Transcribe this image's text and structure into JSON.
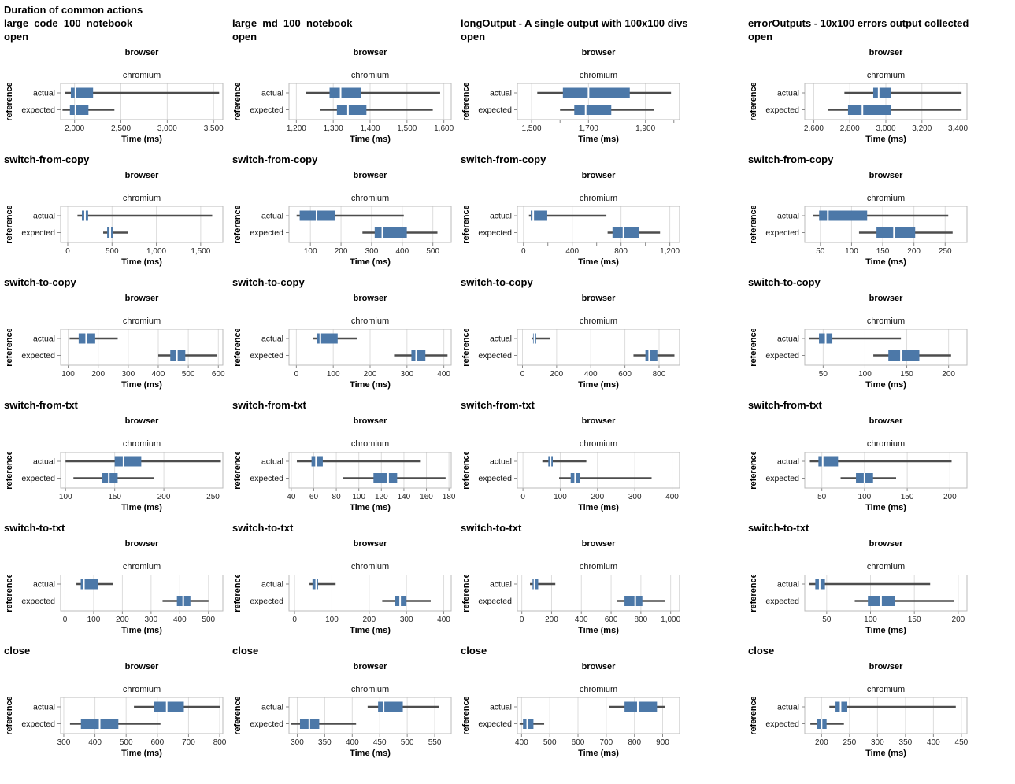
{
  "chart_data": {
    "type": "boxplot",
    "title": "Duration of common actions",
    "xlabel": "Time (ms)",
    "ylabel": "reference",
    "categories": [
      "actual",
      "expected"
    ],
    "browser_label": "browser",
    "engine_label": "chromium",
    "legend_position": "none",
    "grid": true,
    "colors": {
      "box": "#4c78a8",
      "median": "#ffffff",
      "whisker": "#4d4d4d",
      "gridline": "#dddddd",
      "frame": "#bbbbbb",
      "tick": "#888888"
    },
    "columns": [
      "large_code_100_notebook",
      "large_md_100_notebook",
      "longOutput - A single output with 100x100 divs",
      "errorOutputs - 10x100 errors output collected"
    ],
    "rows": [
      "open",
      "switch-from-copy",
      "switch-to-copy",
      "switch-from-txt",
      "switch-to-txt",
      "close"
    ],
    "cells": [
      {
        "action": "open",
        "notebook": "large_code_100_notebook",
        "axis": {
          "min": 1850,
          "max": 3600
        },
        "tick_values": [
          2000,
          2500,
          3000,
          3500
        ],
        "tick_labels": [
          "2,000",
          "2,500",
          "3,000",
          "3,500"
        ],
        "actual": {
          "lo": 1900,
          "q1": 1960,
          "med": 2010,
          "q3": 2200,
          "hi": 3560
        },
        "expected": {
          "lo": 1870,
          "q1": 1950,
          "med": 2010,
          "q3": 2150,
          "hi": 2430
        }
      },
      {
        "action": "open",
        "notebook": "large_md_100_notebook",
        "axis": {
          "min": 1180,
          "max": 1620
        },
        "tick_values": [
          1200,
          1300,
          1400,
          1500,
          1600
        ],
        "tick_labels": [
          "1,200",
          "1,300",
          "1,400",
          "1,500",
          "1,600"
        ],
        "actual": {
          "lo": 1225,
          "q1": 1290,
          "med": 1320,
          "q3": 1375,
          "hi": 1590
        },
        "expected": {
          "lo": 1265,
          "q1": 1310,
          "med": 1340,
          "q3": 1390,
          "hi": 1570
        }
      },
      {
        "action": "open",
        "notebook": "longOutput - A single output with 100x100 divs",
        "axis": {
          "min": 1450,
          "max": 2020
        },
        "tick_values": [
          1500,
          1600,
          1700,
          1800,
          1900,
          2000
        ],
        "tick_labels": [
          "1,500",
          "",
          "1,700",
          "",
          "1,900",
          ""
        ],
        "actual": {
          "lo": 1520,
          "q1": 1610,
          "med": 1700,
          "q3": 1845,
          "hi": 1990
        },
        "expected": {
          "lo": 1600,
          "q1": 1650,
          "med": 1690,
          "q3": 1780,
          "hi": 1930
        }
      },
      {
        "action": "open",
        "notebook": "errorOutputs - 10x100 errors output collected",
        "axis": {
          "min": 2550,
          "max": 3450
        },
        "tick_values": [
          2600,
          2800,
          3000,
          3200,
          3400
        ],
        "tick_labels": [
          "2,600",
          "2,800",
          "3,000",
          "3,200",
          "3,400"
        ],
        "actual": {
          "lo": 2770,
          "q1": 2930,
          "med": 2960,
          "q3": 3030,
          "hi": 3420
        },
        "expected": {
          "lo": 2680,
          "q1": 2790,
          "med": 2870,
          "q3": 3030,
          "hi": 3420
        }
      },
      {
        "action": "switch-from-copy",
        "notebook": "large_code_100_notebook",
        "axis": {
          "min": -80,
          "max": 1750
        },
        "tick_values": [
          0,
          500,
          1000,
          1500
        ],
        "tick_labels": [
          "0",
          "500",
          "1,000",
          "1,500"
        ],
        "actual": {
          "lo": 110,
          "q1": 160,
          "med": 195,
          "q3": 230,
          "hi": 1630
        },
        "expected": {
          "lo": 400,
          "q1": 445,
          "med": 480,
          "q3": 515,
          "hi": 680
        }
      },
      {
        "action": "switch-from-copy",
        "notebook": "large_md_100_notebook",
        "axis": {
          "min": 30,
          "max": 560
        },
        "tick_values": [
          100,
          200,
          300,
          400,
          500
        ],
        "tick_labels": [
          "100",
          "200",
          "300",
          "400",
          "500"
        ],
        "actual": {
          "lo": 55,
          "q1": 65,
          "med": 120,
          "q3": 180,
          "hi": 405
        },
        "expected": {
          "lo": 270,
          "q1": 310,
          "med": 335,
          "q3": 415,
          "hi": 515
        }
      },
      {
        "action": "switch-from-copy",
        "notebook": "longOutput - A single output with 100x100 divs",
        "axis": {
          "min": -50,
          "max": 1280
        },
        "tick_values": [
          0,
          200,
          400,
          600,
          800,
          1000,
          1200
        ],
        "tick_labels": [
          "0",
          "",
          "400",
          "",
          "800",
          "",
          "1,200"
        ],
        "actual": {
          "lo": 45,
          "q1": 60,
          "med": 80,
          "q3": 195,
          "hi": 680
        },
        "expected": {
          "lo": 690,
          "q1": 730,
          "med": 820,
          "q3": 950,
          "hi": 1120
        }
      },
      {
        "action": "switch-from-copy",
        "notebook": "errorOutputs - 10x100 errors output collected",
        "axis": {
          "min": 25,
          "max": 285
        },
        "tick_values": [
          50,
          100,
          150,
          200,
          250
        ],
        "tick_labels": [
          "50",
          "100",
          "150",
          "200",
          "250"
        ],
        "actual": {
          "lo": 38,
          "q1": 48,
          "med": 62,
          "q3": 125,
          "hi": 255
        },
        "expected": {
          "lo": 112,
          "q1": 140,
          "med": 168,
          "q3": 202,
          "hi": 262
        }
      },
      {
        "action": "switch-to-copy",
        "notebook": "large_code_100_notebook",
        "axis": {
          "min": 75,
          "max": 615
        },
        "tick_values": [
          100,
          200,
          300,
          400,
          500,
          600
        ],
        "tick_labels": [
          "100",
          "200",
          "300",
          "400",
          "500",
          "600"
        ],
        "actual": {
          "lo": 105,
          "q1": 135,
          "med": 160,
          "q3": 190,
          "hi": 265
        },
        "expected": {
          "lo": 400,
          "q1": 440,
          "med": 462,
          "q3": 490,
          "hi": 595
        }
      },
      {
        "action": "switch-to-copy",
        "notebook": "large_md_100_notebook",
        "axis": {
          "min": -20,
          "max": 420
        },
        "tick_values": [
          0,
          100,
          200,
          300,
          400
        ],
        "tick_labels": [
          "0",
          "100",
          "200",
          "300",
          "400"
        ],
        "actual": {
          "lo": 45,
          "q1": 55,
          "med": 65,
          "q3": 112,
          "hi": 165
        },
        "expected": {
          "lo": 265,
          "q1": 312,
          "med": 325,
          "q3": 350,
          "hi": 410
        }
      },
      {
        "action": "switch-to-copy",
        "notebook": "longOutput - A single output with 100x100 divs",
        "axis": {
          "min": -30,
          "max": 920
        },
        "tick_values": [
          0,
          200,
          400,
          600,
          800
        ],
        "tick_labels": [
          "0",
          "200",
          "400",
          "600",
          "800"
        ],
        "actual": {
          "lo": 55,
          "q1": 62,
          "med": 70,
          "q3": 80,
          "hi": 160
        },
        "expected": {
          "lo": 650,
          "q1": 720,
          "med": 742,
          "q3": 790,
          "hi": 890
        }
      },
      {
        "action": "switch-to-copy",
        "notebook": "errorOutputs - 10x100 errors output collected",
        "axis": {
          "min": 28,
          "max": 222
        },
        "tick_values": [
          50,
          100,
          150,
          200
        ],
        "tick_labels": [
          "50",
          "100",
          "150",
          "200"
        ],
        "actual": {
          "lo": 33,
          "q1": 45,
          "med": 53,
          "q3": 61,
          "hi": 143
        },
        "expected": {
          "lo": 110,
          "q1": 128,
          "med": 143,
          "q3": 165,
          "hi": 203
        }
      },
      {
        "action": "switch-from-txt",
        "notebook": "large_code_100_notebook",
        "axis": {
          "min": 95,
          "max": 260
        },
        "tick_values": [
          100,
          150,
          200,
          250
        ],
        "tick_labels": [
          "100",
          "150",
          "200",
          "250"
        ],
        "actual": {
          "lo": 100,
          "q1": 150,
          "med": 159,
          "q3": 177,
          "hi": 258
        },
        "expected": {
          "lo": 108,
          "q1": 137,
          "med": 144,
          "q3": 153,
          "hi": 190
        }
      },
      {
        "action": "switch-from-txt",
        "notebook": "large_md_100_notebook",
        "axis": {
          "min": 38,
          "max": 182
        },
        "tick_values": [
          40,
          60,
          80,
          100,
          120,
          140,
          160,
          180
        ],
        "tick_labels": [
          "40",
          "60",
          "80",
          "100",
          "120",
          "140",
          "160",
          "180"
        ],
        "actual": {
          "lo": 45,
          "q1": 58,
          "med": 62,
          "q3": 68,
          "hi": 155
        },
        "expected": {
          "lo": 86,
          "q1": 113,
          "med": 126,
          "q3": 134,
          "hi": 177
        }
      },
      {
        "action": "switch-from-txt",
        "notebook": "longOutput - A single output with 100x100 divs",
        "axis": {
          "min": -15,
          "max": 420
        },
        "tick_values": [
          0,
          100,
          200,
          300,
          400
        ],
        "tick_labels": [
          "0",
          "100",
          "200",
          "300",
          "400"
        ],
        "actual": {
          "lo": 52,
          "q1": 68,
          "med": 74,
          "q3": 80,
          "hi": 170
        },
        "expected": {
          "lo": 97,
          "q1": 128,
          "med": 140,
          "q3": 152,
          "hi": 345
        }
      },
      {
        "action": "switch-from-txt",
        "notebook": "errorOutputs - 10x100 errors output collected",
        "axis": {
          "min": 30,
          "max": 220
        },
        "tick_values": [
          50,
          100,
          150,
          200
        ],
        "tick_labels": [
          "50",
          "100",
          "150",
          "200"
        ],
        "actual": {
          "lo": 36,
          "q1": 46,
          "med": 51,
          "q3": 69,
          "hi": 202
        },
        "expected": {
          "lo": 72,
          "q1": 90,
          "med": 100,
          "q3": 110,
          "hi": 137
        }
      },
      {
        "action": "switch-to-txt",
        "notebook": "large_code_100_notebook",
        "axis": {
          "min": -15,
          "max": 550
        },
        "tick_values": [
          0,
          100,
          200,
          300,
          400,
          500
        ],
        "tick_labels": [
          "0",
          "100",
          "200",
          "300",
          "400",
          "500"
        ],
        "actual": {
          "lo": 40,
          "q1": 55,
          "med": 66,
          "q3": 115,
          "hi": 168
        },
        "expected": {
          "lo": 340,
          "q1": 390,
          "med": 412,
          "q3": 437,
          "hi": 500
        }
      },
      {
        "action": "switch-to-txt",
        "notebook": "large_md_100_notebook",
        "axis": {
          "min": -15,
          "max": 420
        },
        "tick_values": [
          0,
          100,
          200,
          300,
          400
        ],
        "tick_labels": [
          "0",
          "100",
          "200",
          "300",
          "400"
        ],
        "actual": {
          "lo": 40,
          "q1": 48,
          "med": 58,
          "q3": 63,
          "hi": 110
        },
        "expected": {
          "lo": 235,
          "q1": 268,
          "med": 283,
          "q3": 300,
          "hi": 365
        }
      },
      {
        "action": "switch-to-txt",
        "notebook": "longOutput - A single output with 100x100 divs",
        "axis": {
          "min": -30,
          "max": 1060
        },
        "tick_values": [
          0,
          200,
          400,
          600,
          800,
          1000
        ],
        "tick_labels": [
          "0",
          "200",
          "400",
          "600",
          "800",
          "1,000"
        ],
        "actual": {
          "lo": 55,
          "q1": 72,
          "med": 85,
          "q3": 110,
          "hi": 225
        },
        "expected": {
          "lo": 640,
          "q1": 690,
          "med": 762,
          "q3": 810,
          "hi": 960
        }
      },
      {
        "action": "switch-to-txt",
        "notebook": "errorOutputs - 10x100 errors output collected",
        "axis": {
          "min": 25,
          "max": 210
        },
        "tick_values": [
          50,
          100,
          150,
          200
        ],
        "tick_labels": [
          "50",
          "100",
          "150",
          "200"
        ],
        "actual": {
          "lo": 30,
          "q1": 37,
          "med": 42,
          "q3": 48,
          "hi": 168
        },
        "expected": {
          "lo": 82,
          "q1": 97,
          "med": 112,
          "q3": 128,
          "hi": 195
        }
      },
      {
        "action": "close",
        "notebook": "large_code_100_notebook",
        "axis": {
          "min": 290,
          "max": 810
        },
        "tick_values": [
          300,
          400,
          500,
          600,
          700,
          800
        ],
        "tick_labels": [
          "300",
          "400",
          "500",
          "600",
          "700",
          "800"
        ],
        "actual": {
          "lo": 525,
          "q1": 590,
          "med": 630,
          "q3": 685,
          "hi": 800
        },
        "expected": {
          "lo": 320,
          "q1": 355,
          "med": 415,
          "q3": 475,
          "hi": 610
        }
      },
      {
        "action": "close",
        "notebook": "large_md_100_notebook",
        "axis": {
          "min": 285,
          "max": 580
        },
        "tick_values": [
          300,
          350,
          400,
          450,
          500,
          550
        ],
        "tick_labels": [
          "300",
          "350",
          "400",
          "450",
          "500",
          "550"
        ],
        "actual": {
          "lo": 428,
          "q1": 447,
          "med": 457,
          "q3": 492,
          "hi": 558
        },
        "expected": {
          "lo": 288,
          "q1": 305,
          "med": 322,
          "q3": 340,
          "hi": 407
        }
      },
      {
        "action": "close",
        "notebook": "longOutput - A single output with 100x100 divs",
        "axis": {
          "min": 385,
          "max": 960
        },
        "tick_values": [
          400,
          500,
          600,
          700,
          800,
          900
        ],
        "tick_labels": [
          "400",
          "500",
          "600",
          "700",
          "800",
          "900"
        ],
        "actual": {
          "lo": 710,
          "q1": 765,
          "med": 812,
          "q3": 880,
          "hi": 907
        },
        "expected": {
          "lo": 393,
          "q1": 405,
          "med": 420,
          "q3": 442,
          "hi": 480
        }
      },
      {
        "action": "close",
        "notebook": "errorOutputs - 10x100 errors output collected",
        "axis": {
          "min": 170,
          "max": 460
        },
        "tick_values": [
          200,
          250,
          300,
          350,
          400,
          450
        ],
        "tick_labels": [
          "200",
          "250",
          "300",
          "350",
          "400",
          "450"
        ],
        "actual": {
          "lo": 214,
          "q1": 225,
          "med": 234,
          "q3": 246,
          "hi": 440
        },
        "expected": {
          "lo": 180,
          "q1": 192,
          "med": 200,
          "q3": 209,
          "hi": 240
        }
      }
    ]
  }
}
